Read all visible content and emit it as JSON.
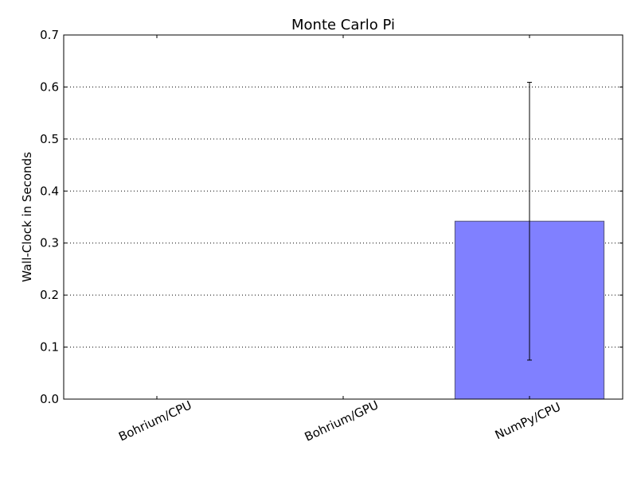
{
  "chart_data": {
    "type": "bar",
    "title": "Monte Carlo Pi",
    "xlabel": "",
    "ylabel": "Wall-Clock in Seconds",
    "categories": [
      "Bohrium/CPU",
      "Bohrium/GPU",
      "NumPy/CPU"
    ],
    "values": [
      0.0,
      0.0,
      0.342
    ],
    "error_low": [
      null,
      null,
      0.075
    ],
    "error_high": [
      null,
      null,
      0.609
    ],
    "ylim": [
      0,
      0.7
    ],
    "yticks": [
      "0.0",
      "0.1",
      "0.2",
      "0.3",
      "0.4",
      "0.5",
      "0.6",
      "0.7"
    ],
    "grid": "horizontal dotted",
    "bar_color": "#8080ff",
    "bar_edge_color": "#555577",
    "legend": "none"
  }
}
